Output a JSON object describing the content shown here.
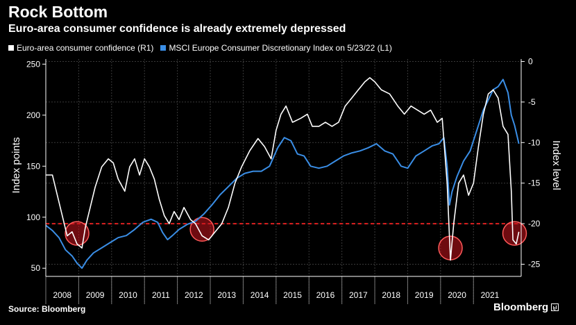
{
  "header": {
    "title": "Rock Bottom",
    "subtitle": "Euro-area consumer confidence is already extremely depressed"
  },
  "legend": [
    {
      "label": "Euro-area consumer confidence (R1)",
      "color": "#ffffff"
    },
    {
      "label": "MSCI Europe Consumer Discretionary Index on 5/23/22 (L1)",
      "color": "#3a8ee6"
    }
  ],
  "footer": {
    "source": "Source: Bloomberg",
    "brand": "Bloomberg"
  },
  "chart_data": {
    "type": "line",
    "title": "Rock Bottom",
    "subtitle": "Euro-area consumer confidence is already extremely depressed",
    "left_axis": {
      "label": "Index points",
      "ylim": [
        42,
        255
      ],
      "ticks": [
        50,
        100,
        150,
        200,
        250
      ]
    },
    "right_axis": {
      "label": "Index level",
      "ylim": [
        -26.5,
        0.3
      ],
      "ticks": [
        0,
        -5,
        -10,
        -15,
        -20,
        -25
      ]
    },
    "x_axis": {
      "xlim": [
        2008.0,
        2022.45
      ],
      "ticks": [
        "2008",
        "2009",
        "2010",
        "2011",
        "2012",
        "2013",
        "2014",
        "2015",
        "2016",
        "2017",
        "2018",
        "2019",
        "2020",
        "2021"
      ]
    },
    "reference_line": {
      "axis": "right",
      "value": -20,
      "color": "#e02020",
      "style": "dashed"
    },
    "highlight_circles": [
      {
        "x": 2008.95,
        "y_right": -21.2
      },
      {
        "x": 2012.75,
        "y_right": -20.7
      },
      {
        "x": 2020.3,
        "y_right": -23.0
      },
      {
        "x": 2022.25,
        "y_right": -21.2
      }
    ],
    "series": [
      {
        "name": "Euro-area consumer confidence (R1)",
        "axis": "right",
        "color": "#ffffff",
        "points": [
          [
            2008.0,
            -14.0
          ],
          [
            2008.2,
            -14.0
          ],
          [
            2008.35,
            -16.5
          ],
          [
            2008.5,
            -19.0
          ],
          [
            2008.65,
            -21.5
          ],
          [
            2008.8,
            -21.0
          ],
          [
            2008.95,
            -22.5
          ],
          [
            2009.1,
            -23.0
          ],
          [
            2009.2,
            -20.5
          ],
          [
            2009.35,
            -18.0
          ],
          [
            2009.5,
            -15.5
          ],
          [
            2009.7,
            -13.0
          ],
          [
            2009.9,
            -12.0
          ],
          [
            2010.05,
            -12.5
          ],
          [
            2010.2,
            -14.5
          ],
          [
            2010.4,
            -16.0
          ],
          [
            2010.55,
            -13.0
          ],
          [
            2010.7,
            -12.0
          ],
          [
            2010.85,
            -14.0
          ],
          [
            2011.0,
            -12.0
          ],
          [
            2011.15,
            -13.0
          ],
          [
            2011.3,
            -14.5
          ],
          [
            2011.45,
            -17.0
          ],
          [
            2011.6,
            -19.0
          ],
          [
            2011.75,
            -20.0
          ],
          [
            2011.9,
            -18.5
          ],
          [
            2012.05,
            -19.5
          ],
          [
            2012.2,
            -18.0
          ],
          [
            2012.4,
            -19.5
          ],
          [
            2012.55,
            -20.0
          ],
          [
            2012.75,
            -21.5
          ],
          [
            2012.95,
            -22.0
          ],
          [
            2013.15,
            -21.0
          ],
          [
            2013.35,
            -20.0
          ],
          [
            2013.55,
            -18.0
          ],
          [
            2013.75,
            -15.0
          ],
          [
            2013.95,
            -13.0
          ],
          [
            2014.2,
            -11.0
          ],
          [
            2014.45,
            -9.5
          ],
          [
            2014.65,
            -10.5
          ],
          [
            2014.85,
            -12.0
          ],
          [
            2015.0,
            -8.5
          ],
          [
            2015.15,
            -6.5
          ],
          [
            2015.3,
            -5.5
          ],
          [
            2015.5,
            -7.5
          ],
          [
            2015.75,
            -7.0
          ],
          [
            2015.95,
            -6.5
          ],
          [
            2016.1,
            -8.0
          ],
          [
            2016.3,
            -8.0
          ],
          [
            2016.5,
            -7.5
          ],
          [
            2016.7,
            -8.0
          ],
          [
            2016.9,
            -7.5
          ],
          [
            2017.1,
            -5.5
          ],
          [
            2017.3,
            -4.5
          ],
          [
            2017.5,
            -3.5
          ],
          [
            2017.7,
            -2.5
          ],
          [
            2017.85,
            -2.0
          ],
          [
            2018.0,
            -2.5
          ],
          [
            2018.2,
            -3.5
          ],
          [
            2018.45,
            -4.0
          ],
          [
            2018.7,
            -5.5
          ],
          [
            2018.9,
            -6.5
          ],
          [
            2019.1,
            -5.5
          ],
          [
            2019.3,
            -6.0
          ],
          [
            2019.5,
            -6.5
          ],
          [
            2019.7,
            -6.0
          ],
          [
            2019.9,
            -7.5
          ],
          [
            2020.05,
            -7.0
          ],
          [
            2020.2,
            -15.0
          ],
          [
            2020.3,
            -24.5
          ],
          [
            2020.4,
            -20.0
          ],
          [
            2020.55,
            -15.0
          ],
          [
            2020.7,
            -14.0
          ],
          [
            2020.85,
            -16.5
          ],
          [
            2021.0,
            -15.0
          ],
          [
            2021.15,
            -10.5
          ],
          [
            2021.3,
            -6.5
          ],
          [
            2021.45,
            -4.0
          ],
          [
            2021.6,
            -3.5
          ],
          [
            2021.75,
            -4.5
          ],
          [
            2021.9,
            -8.0
          ],
          [
            2022.05,
            -9.0
          ],
          [
            2022.15,
            -16.0
          ],
          [
            2022.2,
            -22.0
          ],
          [
            2022.3,
            -22.5
          ],
          [
            2022.38,
            -21.0
          ]
        ]
      },
      {
        "name": "MSCI Europe Consumer Discretionary Index on 5/23/22 (L1)",
        "axis": "left",
        "color": "#3a8ee6",
        "points": [
          [
            2008.0,
            92
          ],
          [
            2008.2,
            87
          ],
          [
            2008.4,
            80
          ],
          [
            2008.6,
            68
          ],
          [
            2008.8,
            62
          ],
          [
            2008.95,
            55
          ],
          [
            2009.1,
            50
          ],
          [
            2009.25,
            58
          ],
          [
            2009.45,
            65
          ],
          [
            2009.7,
            70
          ],
          [
            2009.95,
            75
          ],
          [
            2010.2,
            80
          ],
          [
            2010.45,
            82
          ],
          [
            2010.7,
            88
          ],
          [
            2010.95,
            95
          ],
          [
            2011.2,
            98
          ],
          [
            2011.4,
            95
          ],
          [
            2011.55,
            85
          ],
          [
            2011.7,
            78
          ],
          [
            2011.85,
            82
          ],
          [
            2012.05,
            88
          ],
          [
            2012.3,
            93
          ],
          [
            2012.55,
            96
          ],
          [
            2012.8,
            103
          ],
          [
            2013.05,
            112
          ],
          [
            2013.3,
            122
          ],
          [
            2013.55,
            130
          ],
          [
            2013.8,
            138
          ],
          [
            2014.05,
            143
          ],
          [
            2014.3,
            145
          ],
          [
            2014.55,
            145
          ],
          [
            2014.8,
            150
          ],
          [
            2015.05,
            168
          ],
          [
            2015.25,
            178
          ],
          [
            2015.45,
            175
          ],
          [
            2015.65,
            162
          ],
          [
            2015.85,
            160
          ],
          [
            2016.05,
            150
          ],
          [
            2016.3,
            148
          ],
          [
            2016.55,
            150
          ],
          [
            2016.8,
            155
          ],
          [
            2017.05,
            160
          ],
          [
            2017.3,
            163
          ],
          [
            2017.55,
            165
          ],
          [
            2017.8,
            168
          ],
          [
            2018.05,
            172
          ],
          [
            2018.3,
            165
          ],
          [
            2018.55,
            162
          ],
          [
            2018.8,
            150
          ],
          [
            2019.0,
            148
          ],
          [
            2019.25,
            160
          ],
          [
            2019.5,
            165
          ],
          [
            2019.75,
            170
          ],
          [
            2019.95,
            172
          ],
          [
            2020.1,
            178
          ],
          [
            2020.2,
            150
          ],
          [
            2020.27,
            112
          ],
          [
            2020.35,
            125
          ],
          [
            2020.5,
            140
          ],
          [
            2020.7,
            155
          ],
          [
            2020.9,
            165
          ],
          [
            2021.1,
            185
          ],
          [
            2021.3,
            205
          ],
          [
            2021.45,
            215
          ],
          [
            2021.6,
            225
          ],
          [
            2021.75,
            228
          ],
          [
            2021.9,
            235
          ],
          [
            2022.05,
            222
          ],
          [
            2022.15,
            200
          ],
          [
            2022.25,
            190
          ],
          [
            2022.38,
            172
          ]
        ]
      }
    ]
  }
}
